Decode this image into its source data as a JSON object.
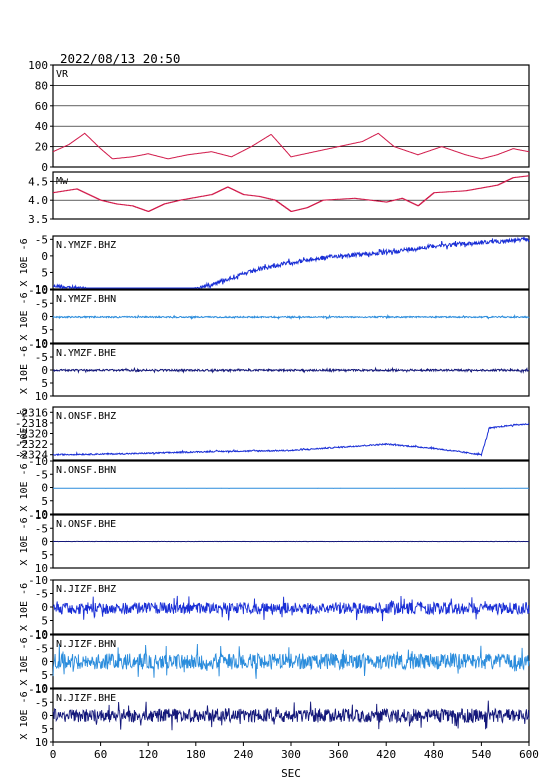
{
  "header": {
    "timestamp": "2022/08/13 20:50"
  },
  "x_axis": {
    "label": "SEC",
    "ticks": [
      0,
      60,
      120,
      180,
      240,
      300,
      360,
      420,
      480,
      540,
      600
    ],
    "range": [
      0,
      600
    ]
  },
  "y_unit_label": "X 10E -6",
  "chart_data": [
    {
      "type": "line",
      "name": "VR",
      "color": "#d11a4a",
      "ylim": [
        0,
        100
      ],
      "yticks": [
        0,
        20,
        40,
        60,
        80,
        100
      ],
      "grid": true,
      "keypoints": [
        [
          0,
          15
        ],
        [
          20,
          22
        ],
        [
          40,
          33
        ],
        [
          60,
          18
        ],
        [
          75,
          8
        ],
        [
          100,
          10
        ],
        [
          120,
          13
        ],
        [
          145,
          8
        ],
        [
          170,
          12
        ],
        [
          200,
          15
        ],
        [
          225,
          10
        ],
        [
          250,
          20
        ],
        [
          275,
          32
        ],
        [
          300,
          10
        ],
        [
          330,
          15
        ],
        [
          360,
          20
        ],
        [
          390,
          25
        ],
        [
          410,
          33
        ],
        [
          430,
          20
        ],
        [
          460,
          12
        ],
        [
          490,
          20
        ],
        [
          520,
          12
        ],
        [
          540,
          8
        ],
        [
          560,
          12
        ],
        [
          580,
          18
        ],
        [
          600,
          15
        ]
      ]
    },
    {
      "type": "line",
      "name": "Mw",
      "color": "#d11a4a",
      "ylim": [
        3.5,
        4.75
      ],
      "yticks": [
        3.5,
        4.0,
        4.5
      ],
      "grid": true,
      "step": true,
      "keypoints": [
        [
          0,
          4.2
        ],
        [
          30,
          4.3
        ],
        [
          60,
          4.0
        ],
        [
          80,
          3.9
        ],
        [
          100,
          3.85
        ],
        [
          120,
          3.7
        ],
        [
          140,
          3.9
        ],
        [
          160,
          4.0
        ],
        [
          200,
          4.15
        ],
        [
          220,
          4.35
        ],
        [
          240,
          4.15
        ],
        [
          260,
          4.1
        ],
        [
          280,
          4.0
        ],
        [
          300,
          3.7
        ],
        [
          320,
          3.8
        ],
        [
          340,
          4.0
        ],
        [
          380,
          4.05
        ],
        [
          420,
          3.95
        ],
        [
          440,
          4.05
        ],
        [
          460,
          3.85
        ],
        [
          480,
          4.2
        ],
        [
          520,
          4.25
        ],
        [
          560,
          4.4
        ],
        [
          580,
          4.6
        ],
        [
          600,
          4.65
        ]
      ]
    },
    {
      "type": "line",
      "name": "N.YMZF.BHZ",
      "color": "#1a2fd6",
      "ylim": [
        10,
        -6
      ],
      "ytick_labels": [
        "-5",
        "0",
        "5",
        "10"
      ],
      "yticks": [
        -5,
        0,
        5,
        10
      ],
      "keypoints": [
        [
          0,
          9
        ],
        [
          40,
          10
        ],
        [
          80,
          12
        ],
        [
          110,
          14
        ],
        [
          140,
          13
        ],
        [
          180,
          10
        ],
        [
          220,
          7
        ],
        [
          260,
          4
        ],
        [
          300,
          2
        ],
        [
          360,
          0
        ],
        [
          420,
          -1
        ],
        [
          480,
          -3
        ],
        [
          540,
          -4
        ],
        [
          600,
          -5
        ]
      ],
      "noise": 0.6
    },
    {
      "type": "line",
      "name": "N.YMZF.BHN",
      "color": "#2a8cdc",
      "ylim": [
        10,
        -10
      ],
      "ytick_labels": [
        "10",
        "5",
        "0",
        "-5",
        "-10"
      ],
      "yticks": [
        10,
        5,
        0,
        -5,
        -10
      ],
      "keypoints": [
        [
          0,
          0.2
        ],
        [
          600,
          0.2
        ]
      ],
      "noise": 0.25
    },
    {
      "type": "line",
      "name": "N.YMZF.BHE",
      "color": "#14187a",
      "ylim": [
        10,
        -10
      ],
      "ytick_labels": [
        "10",
        "5",
        "0",
        "-5",
        "-10"
      ],
      "yticks": [
        10,
        5,
        0,
        -5,
        -10
      ],
      "keypoints": [
        [
          0,
          0.1
        ],
        [
          600,
          0.1
        ]
      ],
      "noise": 0.35
    },
    {
      "type": "line",
      "name": "N.ONSF.BHZ",
      "color": "#1a2fd6",
      "ylim": [
        -2325,
        -2315
      ],
      "ytick_labels": [
        "-2324",
        "-2322",
        "-2320",
        "-2318",
        "-2316"
      ],
      "yticks": [
        -2324,
        -2322,
        -2320,
        -2318,
        -2316
      ],
      "keypoints": [
        [
          0,
          -2324
        ],
        [
          100,
          -2323.8
        ],
        [
          200,
          -2323.4
        ],
        [
          300,
          -2323.2
        ],
        [
          360,
          -2322.6
        ],
        [
          420,
          -2322.0
        ],
        [
          480,
          -2322.8
        ],
        [
          540,
          -2324
        ],
        [
          550,
          -2319
        ],
        [
          580,
          -2318.4
        ],
        [
          600,
          -2318.2
        ]
      ],
      "noise": 0.12
    },
    {
      "type": "line",
      "name": "N.ONSF.BHN",
      "color": "#2a8cdc",
      "ylim": [
        10,
        -10
      ],
      "ytick_labels": [
        "10",
        "5",
        "0",
        "-5",
        "-10"
      ],
      "yticks": [
        10,
        5,
        0,
        -5,
        -10
      ],
      "keypoints": [
        [
          0,
          0.3
        ],
        [
          600,
          0.3
        ]
      ],
      "noise": 0.02
    },
    {
      "type": "line",
      "name": "N.ONSF.BHE",
      "color": "#14187a",
      "ylim": [
        10,
        -10
      ],
      "ytick_labels": [
        "10",
        "5",
        "0",
        "-5",
        "-10"
      ],
      "yticks": [
        10,
        5,
        0,
        -5,
        -10
      ],
      "keypoints": [
        [
          0,
          0
        ],
        [
          600,
          0
        ]
      ],
      "noise": 0.03
    },
    {
      "type": "line",
      "name": "N.JIZF.BHZ",
      "color": "#1a2fd6",
      "ylim": [
        10,
        -10
      ],
      "ytick_labels": [
        "10",
        "5",
        "0",
        "-5",
        "-10"
      ],
      "yticks": [
        10,
        5,
        0,
        -5,
        -10
      ],
      "keypoints": [
        [
          0,
          0.5
        ],
        [
          600,
          0.5
        ]
      ],
      "noise": 2.2
    },
    {
      "type": "line",
      "name": "N.JIZF.BHN",
      "color": "#2a8cdc",
      "ylim": [
        10,
        -10
      ],
      "ytick_labels": [
        "10",
        "5",
        "0",
        "-5",
        "-10"
      ],
      "yticks": [
        10,
        5,
        0,
        -5,
        -10
      ],
      "keypoints": [
        [
          0,
          0
        ],
        [
          600,
          0
        ]
      ],
      "noise": 3.0
    },
    {
      "type": "line",
      "name": "N.JIZF.BHE",
      "color": "#14187a",
      "ylim": [
        10,
        -10
      ],
      "ytick_labels": [
        "10",
        "5",
        "0",
        "-5",
        "-10"
      ],
      "yticks": [
        10,
        5,
        0,
        -5,
        -10
      ],
      "keypoints": [
        [
          0,
          0
        ],
        [
          600,
          0
        ]
      ],
      "noise": 2.6
    }
  ]
}
